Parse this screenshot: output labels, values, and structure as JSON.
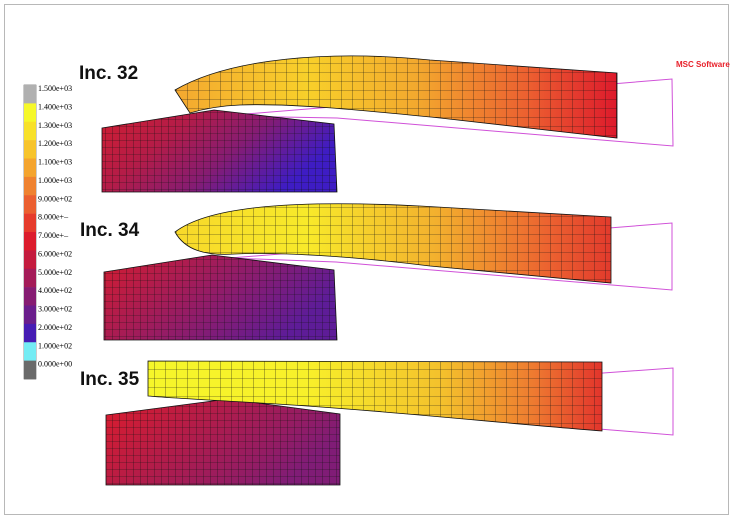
{
  "viewport": {
    "brand_logo": "MSC Software"
  },
  "legend": {
    "entries": [
      {
        "label": "1.500e+03",
        "color": "#b0b0b0"
      },
      {
        "label": "1.400e+03",
        "color": "#f6f82a"
      },
      {
        "label": "1.300e+03",
        "color": "#f8e12a"
      },
      {
        "label": "1.200e+03",
        "color": "#f7c42c"
      },
      {
        "label": "1.100e+03",
        "color": "#f4a42e"
      },
      {
        "label": "1.000e+03",
        "color": "#ef8230"
      },
      {
        "label": "9.000e+02",
        "color": "#eb5f30"
      },
      {
        "label": "8.000e+–",
        "color": "#e63b2c"
      },
      {
        "label": "7.000e+–",
        "color": "#dc1c2c"
      },
      {
        "label": "6.000e+02",
        "color": "#c41b3e"
      },
      {
        "label": "5.000e+02",
        "color": "#a41b58"
      },
      {
        "label": "4.000e+02",
        "color": "#861c72"
      },
      {
        "label": "3.000e+02",
        "color": "#6a1d8c"
      },
      {
        "label": "2.000e+02",
        "color": "#461cb4"
      },
      {
        "label": "1.000e+02",
        "color": "#74ecf4"
      },
      {
        "label": "0.000e+00",
        "color": "#6a6a6a"
      }
    ]
  },
  "increments": [
    {
      "label": "Inc. 32"
    },
    {
      "label": "Inc. 34"
    },
    {
      "label": "Inc. 35"
    }
  ],
  "colors": {
    "mesh_line": "#111111",
    "outline": "#d050d8"
  }
}
